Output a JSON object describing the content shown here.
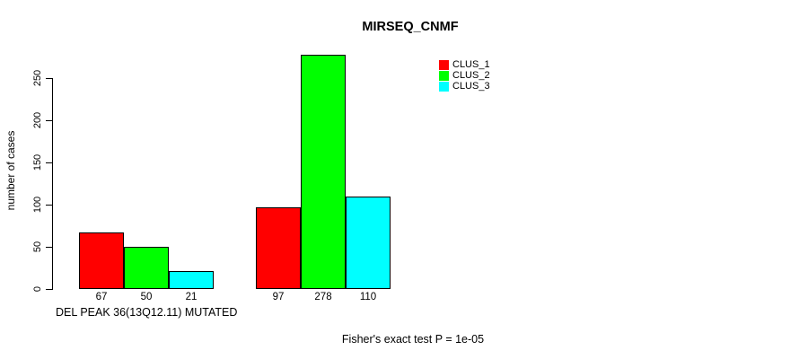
{
  "figure": {
    "title": "MIRSEQ_CNMF",
    "footnote": "Fisher's exact test P = 1e-05"
  },
  "y_axis": {
    "label": "number of cases",
    "ticks": [
      0,
      50,
      100,
      150,
      200,
      250
    ]
  },
  "x_axis": {
    "label": "DEL PEAK 36(13Q12.11) MUTATED"
  },
  "legend": {
    "items": [
      {
        "label": "CLUS_1",
        "color": "#ff0000"
      },
      {
        "label": "CLUS_2",
        "color": "#00ff00"
      },
      {
        "label": "CLUS_3",
        "color": "#00ffff"
      }
    ]
  },
  "chart_data": {
    "type": "bar",
    "title": "MIRSEQ_CNMF",
    "ylabel": "number of cases",
    "xlabel": "DEL PEAK 36(13Q12.11) MUTATED",
    "ylim": [
      0,
      280
    ],
    "yticks": [
      0,
      50,
      100,
      150,
      200,
      250
    ],
    "grid": false,
    "legend_position": "top-right",
    "bar_colors": [
      "#ff0000",
      "#00ff00",
      "#00ffff"
    ],
    "series": [
      {
        "name": "CLUS_1",
        "color": "#ff0000",
        "values": [
          67,
          97
        ]
      },
      {
        "name": "CLUS_2",
        "color": "#00ff00",
        "values": [
          50,
          278
        ]
      },
      {
        "name": "CLUS_3",
        "color": "#00ffff",
        "values": [
          21,
          110
        ]
      }
    ],
    "groups": [
      {
        "values": [
          67,
          50,
          21
        ],
        "bar_labels": [
          "67",
          "50",
          "21"
        ]
      },
      {
        "values": [
          97,
          278,
          110
        ],
        "bar_labels": [
          "97",
          "278",
          "110"
        ]
      }
    ],
    "annotation": "Fisher's exact test P = 1e-05"
  }
}
